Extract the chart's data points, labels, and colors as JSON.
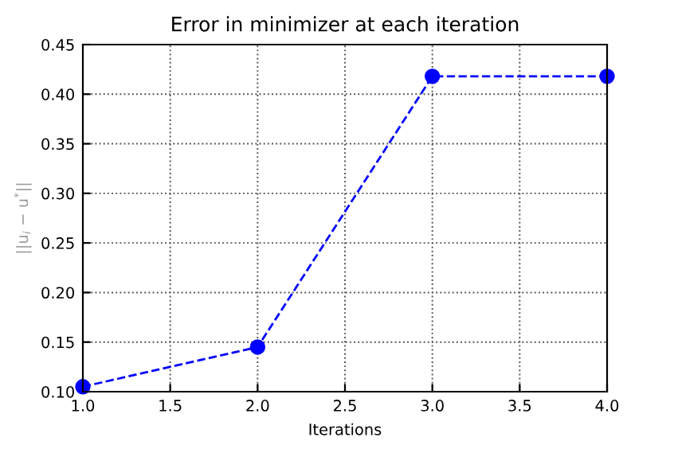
{
  "chart_data": {
    "type": "line",
    "title": "Error in minimizer at each iteration",
    "xlabel": "Iterations",
    "ylabel": "||u$_{i}$ − u$^{*}$||",
    "x": [
      1.0,
      2.0,
      3.0,
      4.0
    ],
    "series": [
      {
        "color": "#0000ff",
        "values": [
          0.105,
          0.145,
          0.418,
          0.418
        ]
      }
    ],
    "xlim": [
      1.0,
      4.0
    ],
    "xticks": [
      {
        "value": 1.0,
        "label": "1.0"
      },
      {
        "value": 1.5,
        "label": "1.5"
      },
      {
        "value": 2.0,
        "label": "2.0"
      },
      {
        "value": 2.5,
        "label": "2.5"
      },
      {
        "value": 3.0,
        "label": "3.0"
      },
      {
        "value": 3.5,
        "label": "3.5"
      },
      {
        "value": 4.0,
        "label": "4.0"
      }
    ],
    "ylim": [
      0.1,
      0.45
    ],
    "yticks": [
      {
        "value": 0.1,
        "label": "0.10"
      },
      {
        "value": 0.15,
        "label": "0.15"
      },
      {
        "value": 0.2,
        "label": "0.20"
      },
      {
        "value": 0.25,
        "label": "0.25"
      },
      {
        "value": 0.3,
        "label": "0.30"
      },
      {
        "value": 0.35,
        "label": "0.35"
      },
      {
        "value": 0.4,
        "label": "0.40"
      },
      {
        "value": 0.45,
        "label": "0.45"
      }
    ],
    "grid": true,
    "marker": "circle",
    "line_style": "dashed"
  }
}
